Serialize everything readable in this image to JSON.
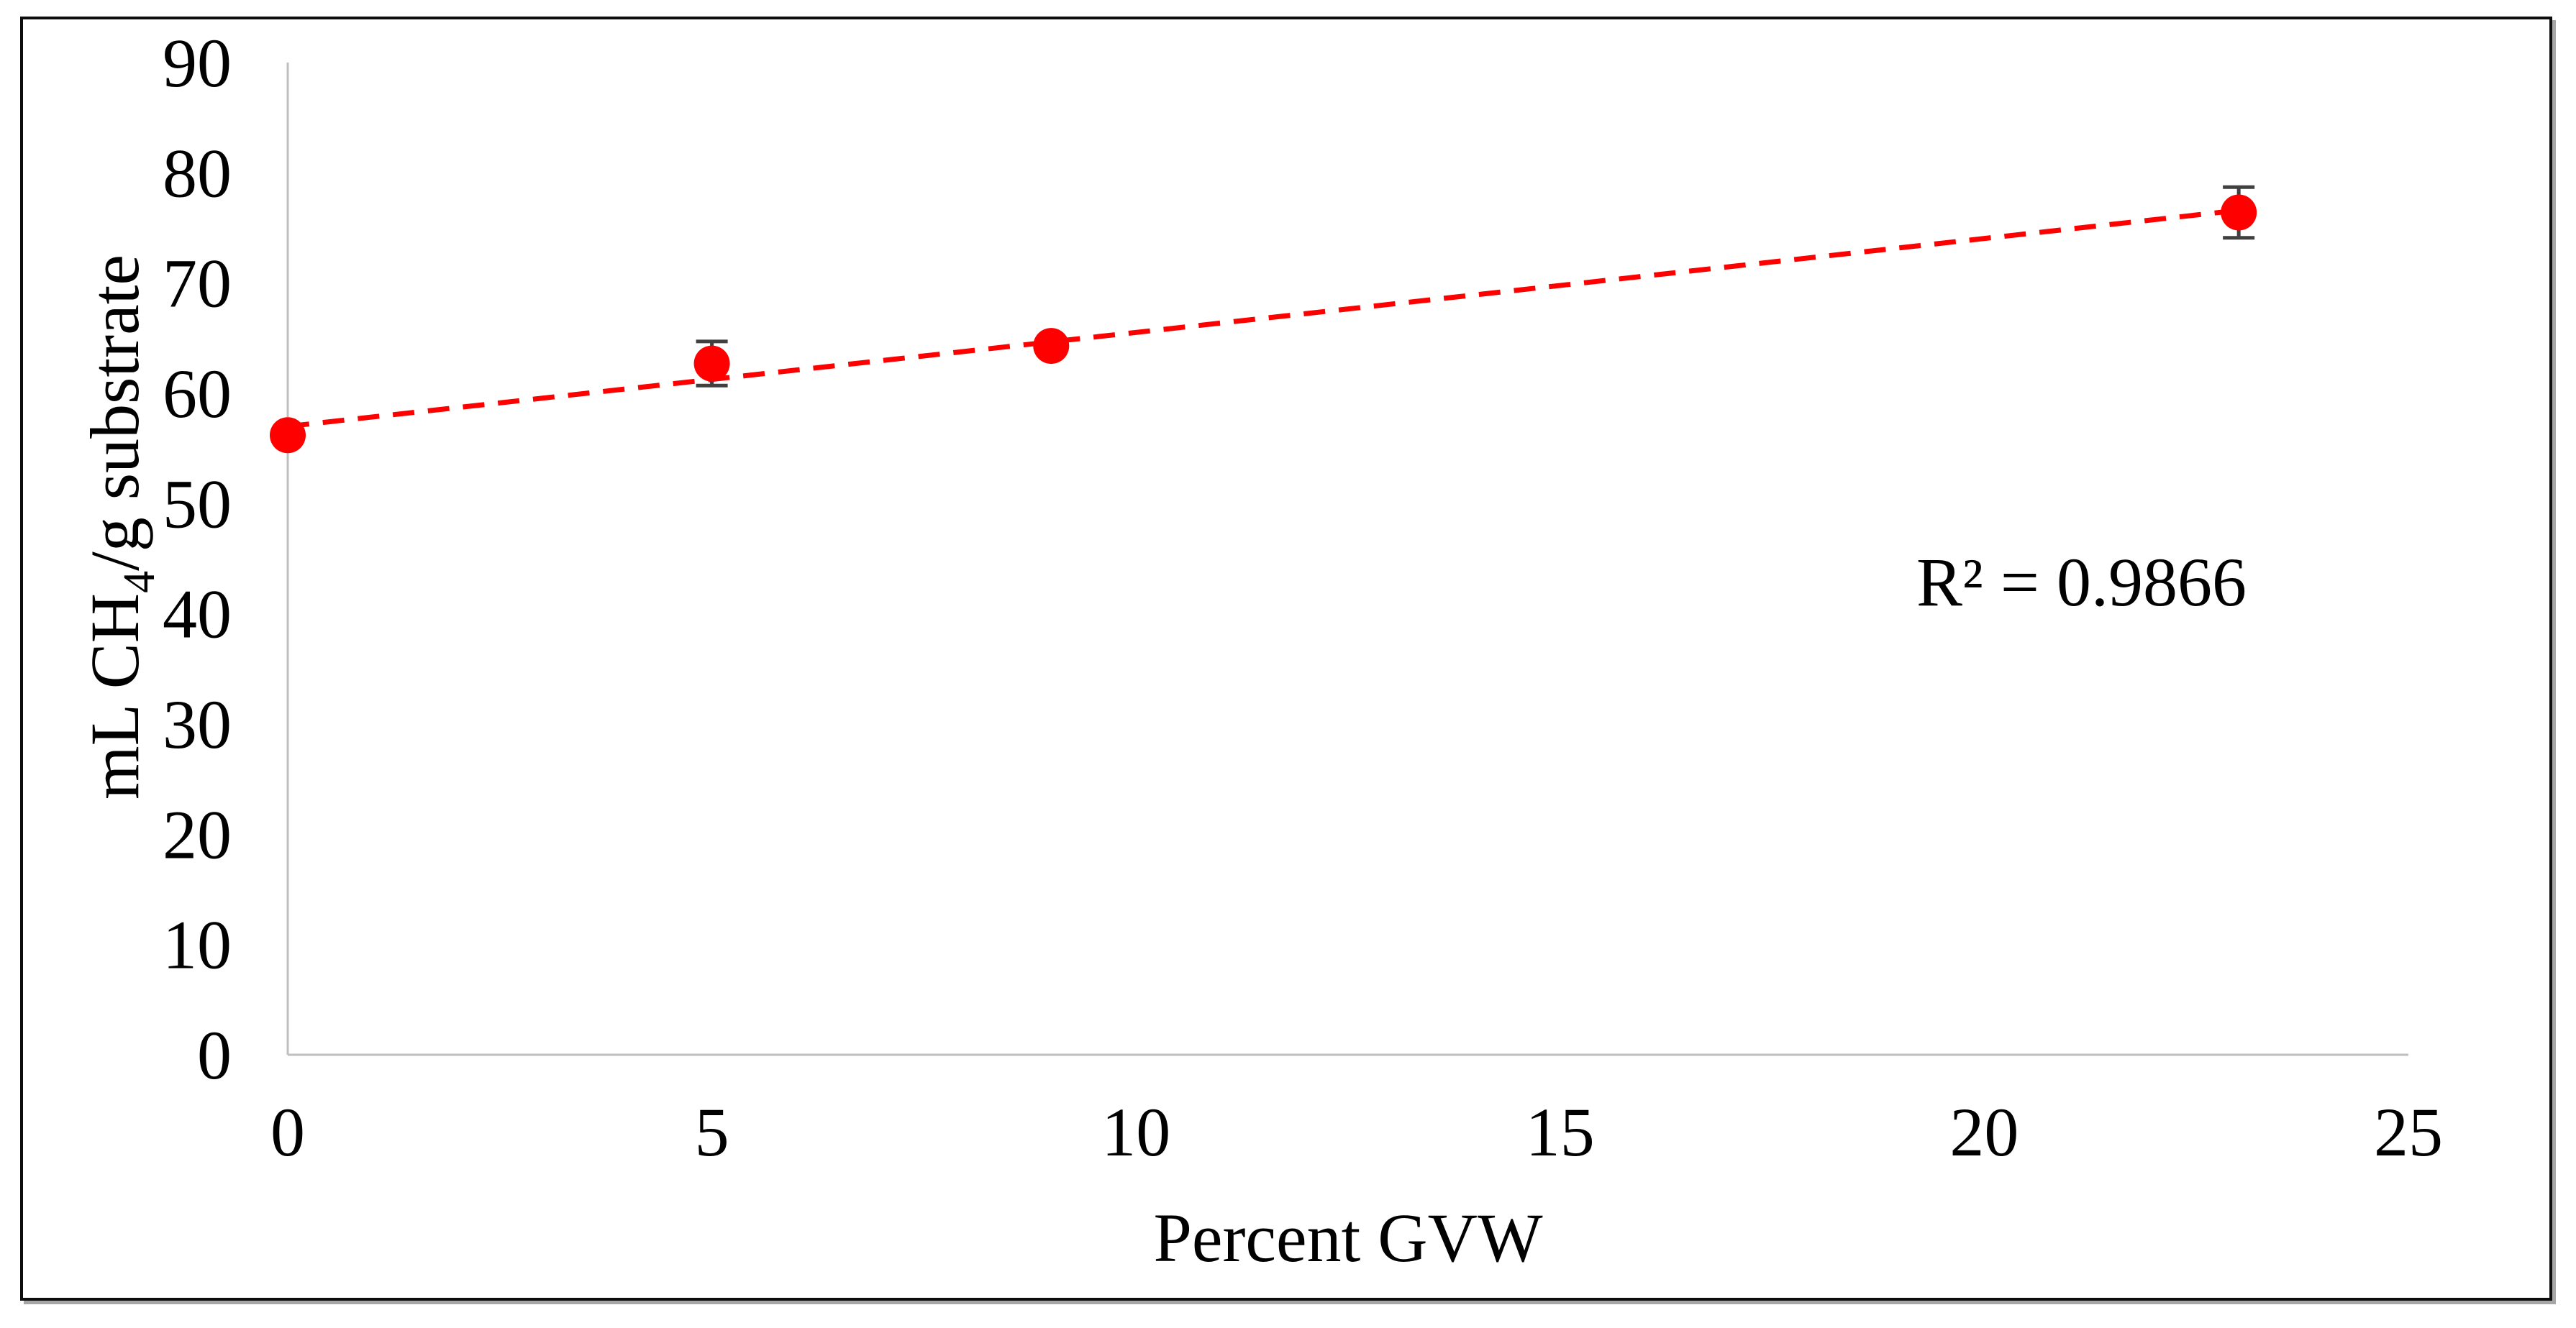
{
  "figure": {
    "background": "#ffffff",
    "border_color": "#0d0d0d",
    "border_shadow_color": "#a6a6a6"
  },
  "chart_data": {
    "type": "scatter",
    "title": "",
    "xlabel": "Percent GVW",
    "ylabel_parts": {
      "pre": "mL CH",
      "sub": "4",
      "post": "/g substrate"
    },
    "xlim": [
      0,
      25
    ],
    "ylim": [
      0,
      90
    ],
    "x_ticks": [
      0,
      5,
      10,
      15,
      20,
      25
    ],
    "y_ticks": [
      0,
      10,
      20,
      30,
      40,
      50,
      60,
      70,
      80,
      90
    ],
    "grid": false,
    "legend": false,
    "axis_line_color": "#bfbfbf",
    "text_color": "#000000",
    "series": [
      {
        "name": "methane-yield-vs-percent-gvw",
        "marker": "circle",
        "color": "#ff0000",
        "error_bar_color": "#404040",
        "points": [
          {
            "x": 0,
            "y": 56.2,
            "err": null
          },
          {
            "x": 5,
            "y": 62.7,
            "err": 2.0
          },
          {
            "x": 9,
            "y": 64.3,
            "err": null
          },
          {
            "x": 23,
            "y": 76.4,
            "err": 2.3
          }
        ]
      }
    ],
    "trendline": {
      "style": "dashed",
      "color": "#ff0000",
      "x1": 0,
      "y1": 57.0,
      "x2": 23,
      "y2": 76.6
    },
    "annotation": {
      "text": "R² = 0.9866",
      "r_squared": "0.9866"
    }
  }
}
